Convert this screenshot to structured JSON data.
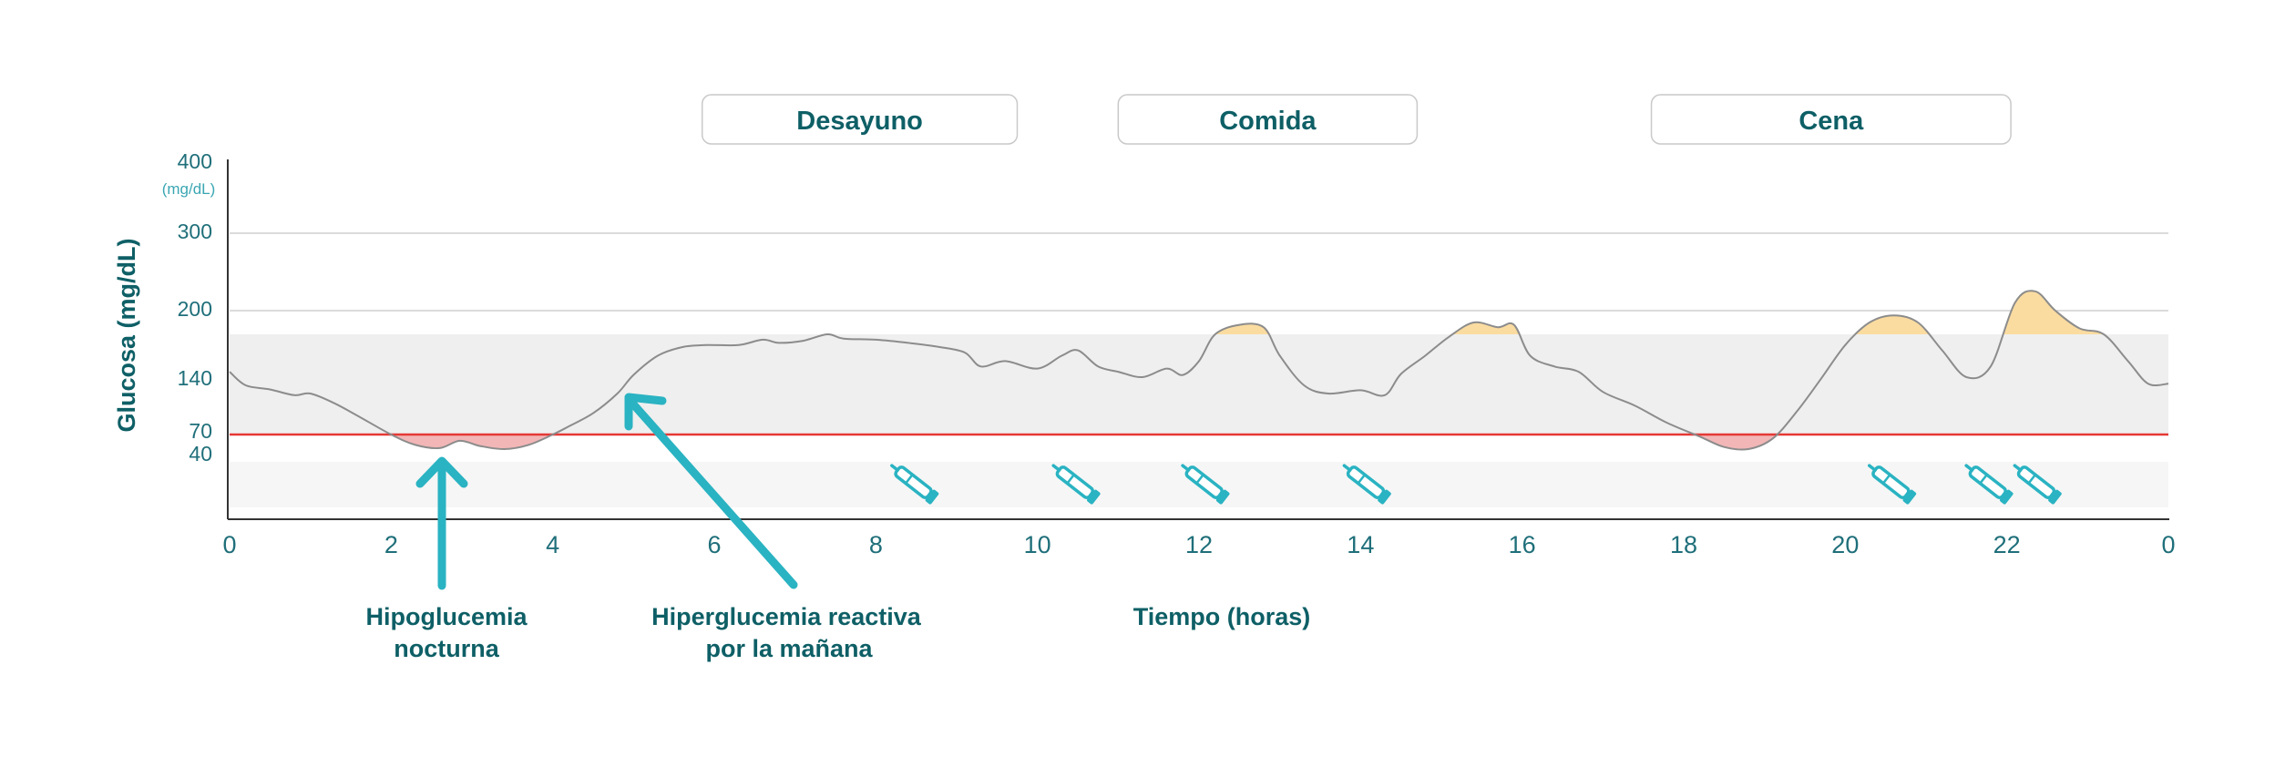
{
  "chart_data": {
    "type": "line",
    "title": "",
    "xlabel": "Tiempo (horas)",
    "ylabel": "Glucosa (mg/dL)",
    "y_unit": "(mg/dL)",
    "x_ticks": [
      "0",
      "2",
      "4",
      "6",
      "8",
      "10",
      "12",
      "14",
      "16",
      "18",
      "20",
      "22",
      "0"
    ],
    "y_ticks": [
      {
        "label": "400",
        "value": 400,
        "color": "#1f6f7a"
      },
      {
        "label": "300",
        "value": 300,
        "color": "#1f6f7a"
      },
      {
        "label": "200",
        "value": 200,
        "color": "#1f6f7a"
      },
      {
        "label": "140",
        "value": 140,
        "color": "#1f6f7a"
      },
      {
        "label": "70",
        "value": 70,
        "color": "#e06a6a"
      },
      {
        "label": "40",
        "value": 40,
        "color": "#e06a6a"
      }
    ],
    "xlim": [
      0,
      24
    ],
    "target_range": [
      70,
      180
    ],
    "hypo_threshold": 70,
    "meals": [
      {
        "label": "Desayuno",
        "start": 5.85,
        "end": 9.75
      },
      {
        "label": "Comida",
        "start": 11.0,
        "end": 14.7
      },
      {
        "label": "Cena",
        "start": 17.6,
        "end": 22.05
      }
    ],
    "insulin_doses_hours": [
      8.5,
      10.5,
      12.1,
      14.1,
      20.6,
      21.8,
      22.4
    ],
    "series": [
      {
        "x": [
          0,
          0.2,
          0.5,
          0.8,
          1.0,
          1.3,
          1.6,
          2.0,
          2.3,
          2.6,
          2.85,
          3.1,
          3.4,
          3.7,
          4.0,
          4.2,
          4.5,
          4.8,
          5.0,
          5.3,
          5.6,
          5.9,
          6.3,
          6.6,
          6.8,
          7.1,
          7.4,
          7.6,
          8.0,
          8.4,
          8.8,
          9.1,
          9.3,
          9.6,
          10.0,
          10.3,
          10.5,
          10.75,
          11.0,
          11.3,
          11.6,
          11.8,
          12.0,
          12.2,
          12.5,
          12.8,
          13.0,
          13.3,
          13.6,
          14.0,
          14.3,
          14.5,
          14.8,
          15.1,
          15.4,
          15.7,
          15.9,
          16.1,
          16.4,
          16.7,
          17.0,
          17.4,
          17.8,
          18.2,
          18.5,
          18.8,
          19.1,
          19.4,
          19.7,
          20.0,
          20.3,
          20.6,
          20.9,
          21.2,
          21.5,
          21.8,
          22.1,
          22.35,
          22.6,
          22.9,
          23.2,
          23.5,
          23.75,
          24.0
        ],
        "y": [
          145,
          130,
          125,
          118,
          120,
          108,
          92,
          70,
          60,
          57,
          64,
          59,
          56,
          60,
          70,
          80,
          96,
          120,
          142,
          160,
          168,
          170,
          170,
          175,
          172,
          174,
          180,
          176,
          175,
          172,
          168,
          163,
          150,
          155,
          148,
          160,
          165,
          150,
          145,
          140,
          148,
          142,
          155,
          180,
          188,
          186,
          160,
          130,
          120,
          124,
          118,
          143,
          160,
          178,
          190,
          186,
          188,
          160,
          150,
          145,
          122,
          105,
          84,
          68,
          58,
          56,
          66,
          98,
          138,
          170,
          190,
          196,
          190,
          165,
          140,
          150,
          210,
          225,
          200,
          185,
          180,
          155,
          132,
          132
        ],
        "color": "#8c8c8c"
      }
    ],
    "annotations": [
      {
        "line1": "Hipoglucemia",
        "line2": "nocturna"
      },
      {
        "line1": "Hiperglucemia reactiva",
        "line2": "por la mañana"
      }
    ],
    "colors": {
      "target_band": "#efefef",
      "low_band": "#f6f6f6",
      "hypo_line": "#e53935",
      "hypo_fill": "#f2b6b6",
      "hyper_fill": "#fbdca0",
      "arrow": "#2ab3c2",
      "text": "#0e5f66"
    },
    "icons": [
      "insulin-pen-icon",
      "up-arrow-icon",
      "diagonal-arrow-icon"
    ]
  }
}
